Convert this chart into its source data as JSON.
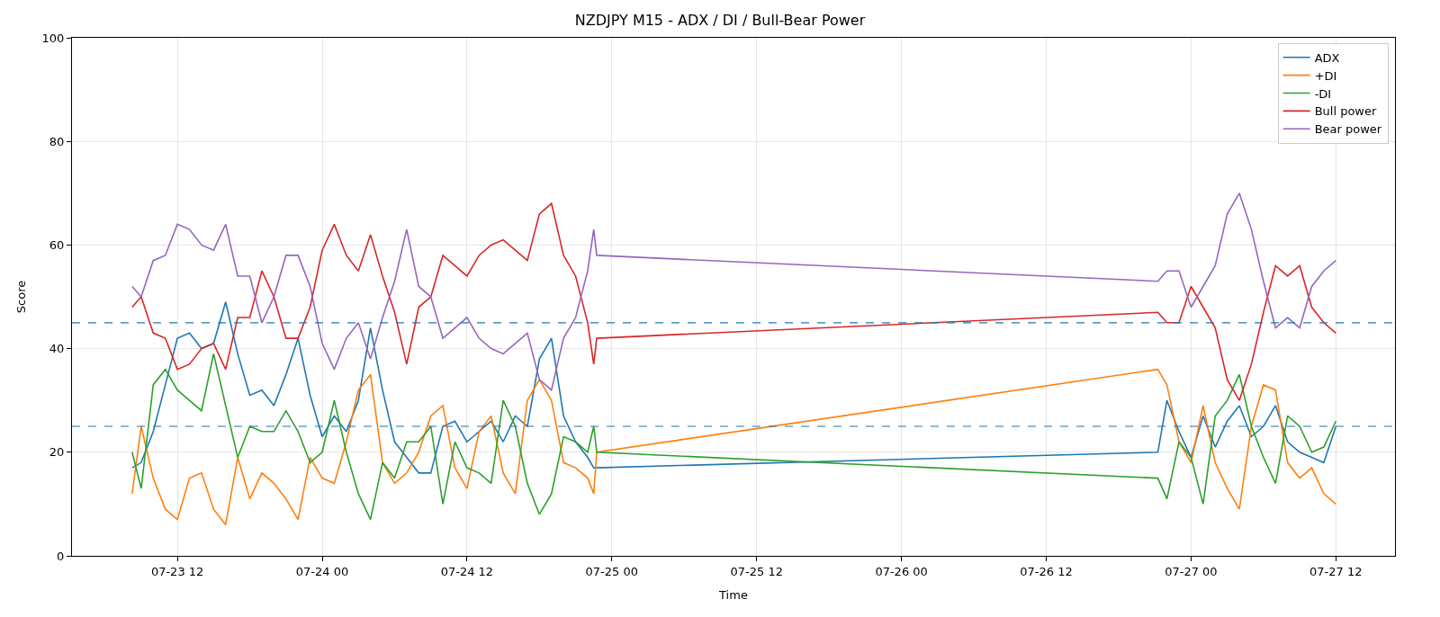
{
  "chart_data": {
    "type": "line",
    "title": "NZDJPY M15 - ADX / DI / Bull-Bear Power",
    "xlabel": "Time",
    "ylabel": "Score",
    "x": [
      "--07-23T08:15",
      "--07-23T09:00",
      "--07-23T10:00",
      "--07-23T11:00",
      "--07-23T12:00",
      "--07-23T13:00",
      "--07-23T14:00",
      "--07-23T15:00",
      "--07-23T16:00",
      "--07-23T17:00",
      "--07-23T18:00",
      "--07-23T19:00",
      "--07-23T20:00",
      "--07-23T21:00",
      "--07-23T22:00",
      "--07-23T23:00",
      "--07-24T00:00",
      "--07-24T01:00",
      "--07-24T02:00",
      "--07-24T03:00",
      "--07-24T04:00",
      "--07-24T05:00",
      "--07-24T06:00",
      "--07-24T07:00",
      "--07-24T08:00",
      "--07-24T09:00",
      "--07-24T10:00",
      "--07-24T11:00",
      "--07-24T12:00",
      "--07-24T13:00",
      "--07-24T14:00",
      "--07-24T15:00",
      "--07-24T16:00",
      "--07-24T17:00",
      "--07-24T18:00",
      "--07-24T19:00",
      "--07-24T20:00",
      "--07-24T21:00",
      "--07-24T22:00",
      "--07-24T22:30",
      "--07-24T22:45",
      "--07-26T21:15",
      "--07-26T22:00",
      "--07-26T23:00",
      "--07-27T00:00",
      "--07-27T01:00",
      "--07-27T02:00",
      "--07-27T03:00",
      "--07-27T04:00",
      "--07-27T05:00",
      "--07-27T06:00",
      "--07-27T07:00",
      "--07-27T08:00",
      "--07-27T09:00",
      "--07-27T10:00",
      "--07-27T11:00",
      "--07-27T12:00"
    ],
    "series": [
      {
        "name": "ADX",
        "color": "#1f77b4",
        "values": [
          17,
          18,
          24,
          33,
          42,
          43,
          40,
          41,
          49,
          39,
          31,
          32,
          29,
          35,
          42,
          31,
          23,
          27,
          24,
          30,
          44,
          32,
          22,
          19,
          16,
          16,
          25,
          26,
          22,
          24,
          26,
          22,
          27,
          25,
          38,
          42,
          27,
          22,
          19,
          17,
          17,
          20,
          30,
          24,
          19,
          27,
          21,
          26,
          29,
          23,
          25,
          29,
          22,
          20,
          19,
          18,
          25
        ]
      },
      {
        "name": "+DI",
        "color": "#ff7f0e",
        "values": [
          12,
          25,
          15,
          9,
          7,
          15,
          16,
          9,
          6,
          19,
          11,
          16,
          14,
          11,
          7,
          19,
          15,
          14,
          22,
          32,
          35,
          18,
          14,
          16,
          20,
          27,
          29,
          17,
          13,
          24,
          27,
          16,
          12,
          30,
          34,
          30,
          18,
          17,
          15,
          12,
          20,
          36,
          33,
          22,
          18,
          29,
          18,
          13,
          9,
          25,
          33,
          32,
          18,
          15,
          17,
          12,
          10
        ]
      },
      {
        "name": "-DI",
        "color": "#2ca02c",
        "values": [
          20,
          13,
          33,
          36,
          32,
          30,
          28,
          39,
          29,
          19,
          25,
          24,
          24,
          28,
          24,
          18,
          20,
          30,
          20,
          12,
          7,
          18,
          15,
          22,
          22,
          25,
          10,
          22,
          17,
          16,
          14,
          30,
          25,
          14,
          8,
          12,
          23,
          22,
          20,
          25,
          20,
          15,
          11,
          22,
          19,
          10,
          27,
          30,
          35,
          25,
          19,
          14,
          27,
          25,
          20,
          21,
          26
        ]
      },
      {
        "name": "Bull power",
        "color": "#d62728",
        "values": [
          48,
          50,
          43,
          42,
          36,
          37,
          40,
          41,
          36,
          46,
          46,
          55,
          50,
          42,
          42,
          48,
          59,
          64,
          58,
          55,
          62,
          54,
          47,
          37,
          48,
          50,
          58,
          56,
          54,
          58,
          60,
          61,
          59,
          57,
          66,
          68,
          58,
          54,
          45,
          37,
          42,
          47,
          45,
          45,
          52,
          48,
          44,
          34,
          30,
          37,
          47,
          56,
          54,
          56,
          48,
          45,
          43
        ]
      },
      {
        "name": "Bear power",
        "color": "#9467bd",
        "values": [
          52,
          50,
          57,
          58,
          64,
          63,
          60,
          59,
          64,
          54,
          54,
          45,
          50,
          58,
          58,
          52,
          41,
          36,
          42,
          45,
          38,
          46,
          53,
          63,
          52,
          50,
          42,
          44,
          46,
          42,
          40,
          39,
          41,
          43,
          34,
          32,
          42,
          46,
          55,
          63,
          58,
          53,
          55,
          55,
          48,
          52,
          56,
          66,
          70,
          63,
          53,
          44,
          46,
          44,
          52,
          55,
          57
        ]
      }
    ],
    "ref_lines": [
      {
        "axis": "y",
        "value": 45,
        "color": "#1f77b4",
        "line_style": "dashed"
      },
      {
        "axis": "y",
        "value": 25,
        "color": "#1f77b4",
        "line_style": "dashed"
      }
    ],
    "xlim": [
      "--07-23T03:16",
      "--07-27T16:54"
    ],
    "xticks": [
      {
        "value": "--07-23T12:00",
        "label": "07-23 12"
      },
      {
        "value": "--07-24T00:00",
        "label": "07-24 00"
      },
      {
        "value": "--07-24T12:00",
        "label": "07-24 12"
      },
      {
        "value": "--07-25T00:00",
        "label": "07-25 00"
      },
      {
        "value": "--07-25T12:00",
        "label": "07-25 12"
      },
      {
        "value": "--07-26T00:00",
        "label": "07-26 00"
      },
      {
        "value": "--07-26T12:00",
        "label": "07-26 12"
      },
      {
        "value": "--07-27T00:00",
        "label": "07-27 00"
      },
      {
        "value": "--07-27T12:00",
        "label": "07-27 12"
      }
    ],
    "ylim": [
      0,
      100
    ],
    "yticks": [
      0,
      20,
      40,
      60,
      80,
      100
    ],
    "grid": true,
    "legend": "top right",
    "line_style": "solid",
    "marker": "none"
  }
}
